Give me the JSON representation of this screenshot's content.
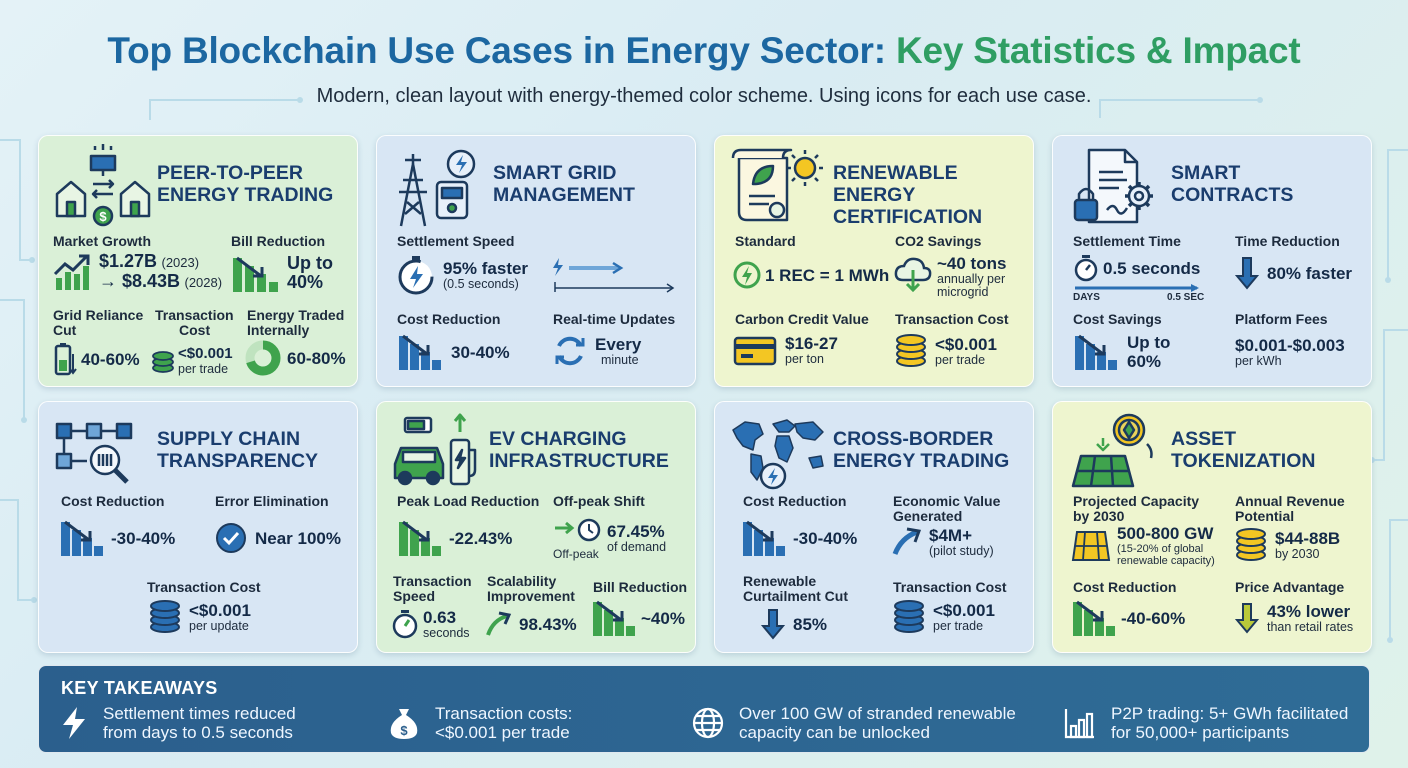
{
  "header": {
    "title_part1": "Top Blockchain Use Cases in Energy Sector:",
    "title_part2": "Key Statistics & Impact",
    "subtitle": "Modern, clean layout with energy-themed color scheme. Using icons for each use case."
  },
  "colors": {
    "title_blue": "#1c67a1",
    "title_green": "#2f9e63",
    "card_green": "#daf0d7",
    "card_blue": "#d8e6f4",
    "card_yellow": "#eef5cf",
    "icon_blue": "#2a6fb3",
    "icon_green": "#3fa34d",
    "takeaway_bg": "#2b5f8d"
  },
  "cards": [
    {
      "title": "Peer-to-Peer Energy Trading",
      "icon": "house-trading-icon",
      "market_growth": {
        "label": "Market Growth",
        "value1": "$1.27B",
        "year1": "(2023)",
        "value2": "→ $8.43B",
        "year2": "(2028)"
      },
      "bill_reduction": {
        "label": "Bill Reduction",
        "value": "Up to",
        "value2": "40%"
      },
      "grid_reliance": {
        "label": "Grid Reliance",
        "label2": "Cut",
        "value": "40-60%"
      },
      "transaction_cost": {
        "label": "Transaction",
        "label2": "Cost",
        "value": "<$0.001",
        "sub": "per trade"
      },
      "energy_traded": {
        "label": "Energy Traded",
        "label2": "Internally",
        "value": "60-80%"
      }
    },
    {
      "title": "Smart Grid Management",
      "icon": "power-tower-meter-icon",
      "settlement_speed": {
        "label": "Settlement Speed",
        "value": "95% faster",
        "sub": "(0.5 seconds)"
      },
      "cost_reduction": {
        "label": "Cost Reduction",
        "value": "30-40%"
      },
      "realtime": {
        "label": "Real-time Updates",
        "value": "Every",
        "sub": "minute"
      }
    },
    {
      "title": "Renewable Energy Certification",
      "icon": "certificate-sun-icon",
      "standard": {
        "label": "Standard",
        "value": "1 REC = 1 MWh"
      },
      "co2": {
        "label": "CO2 Savings",
        "value": "~40 tons",
        "sub": "annually per",
        "sub2": "microgrid"
      },
      "carbon": {
        "label": "Carbon Credit Value",
        "value": "$16-27",
        "sub": "per ton"
      },
      "transaction_cost": {
        "label": "Transaction Cost",
        "value": "<$0.001",
        "sub": "per trade"
      }
    },
    {
      "title": "Smart Contracts",
      "icon": "contract-lock-gear-icon",
      "settlement_time": {
        "label": "Settlement Time",
        "value": "0.5 seconds",
        "axis_start": "DAYS",
        "axis_end": "0.5 SEC"
      },
      "time_reduction": {
        "label": "Time Reduction",
        "value": "80% faster"
      },
      "cost_savings": {
        "label": "Cost Savings",
        "value": "Up to",
        "value2": "60%"
      },
      "platform_fees": {
        "label": "Platform Fees",
        "value": "$0.001-$0.003",
        "sub": "per kWh"
      }
    },
    {
      "title": "Supply Chain Transparency",
      "icon": "flowchart-magnifier-icon",
      "cost_reduction": {
        "label": "Cost Reduction",
        "value": "-30-40%"
      },
      "error": {
        "label": "Error Elimination",
        "value": "Near 100%"
      },
      "transaction_cost": {
        "label": "Transaction Cost",
        "value": "<$0.001",
        "sub": "per update"
      }
    },
    {
      "title": "EV Charging Infrastructure",
      "icon": "ev-charger-icon",
      "peak_load": {
        "label": "Peak Load Reduction",
        "value": "-22.43%"
      },
      "offpeak": {
        "label": "Off-peak Shift",
        "value": "67.45%",
        "sub": "of demand",
        "tag": "Off-peak"
      },
      "speed": {
        "label": "Transaction",
        "label2": "Speed",
        "value": "0.63",
        "sub": "seconds"
      },
      "scalability": {
        "label": "Scalability",
        "label2": "Improvement",
        "value": "98.43%"
      },
      "bill": {
        "label": "Bill Reduction",
        "value": "~40%"
      }
    },
    {
      "title": "Cross-Border Energy Trading",
      "icon": "world-map-icon",
      "cost_reduction": {
        "label": "Cost Reduction",
        "value": "-30-40%"
      },
      "economic": {
        "label": "Economic Value",
        "label2": "Generated",
        "value": "$4M+",
        "sub": "(pilot study)"
      },
      "curtailment": {
        "label": "Renewable",
        "label2": "Curtailment Cut",
        "value": "85%"
      },
      "transaction_cost": {
        "label": "Transaction Cost",
        "value": "<$0.001",
        "sub": "per trade"
      }
    },
    {
      "title": "Asset Tokenization",
      "icon": "solar-token-icon",
      "capacity": {
        "label": "Projected Capacity",
        "label2": "by 2030",
        "value": "500-800 GW",
        "sub": "(15-20% of global",
        "sub2": "renewable capacity)"
      },
      "revenue": {
        "label": "Annual Revenue",
        "label2": "Potential",
        "value": "$44-88B",
        "sub": "by 2030"
      },
      "cost_reduction": {
        "label": "Cost Reduction",
        "value": "-40-60%"
      },
      "price": {
        "label": "Price Advantage",
        "value": "43% lower",
        "sub": "than retail rates"
      }
    }
  ],
  "takeaways": {
    "title": "KEY TAKEAWAYS",
    "items": [
      {
        "icon": "lightning-icon",
        "line1": "Settlement times reduced",
        "line2": "from days to 0.5 seconds"
      },
      {
        "icon": "money-bag-icon",
        "line1": "Transaction costs:",
        "line2": "<$0.001 per trade"
      },
      {
        "icon": "globe-icon",
        "line1": "Over 100 GW of stranded renewable",
        "line2": "capacity can be unlocked"
      },
      {
        "icon": "bar-chart-icon",
        "line1": "P2P trading: 5+ GWh facilitated",
        "line2": "for 50,000+ participants"
      }
    ]
  }
}
